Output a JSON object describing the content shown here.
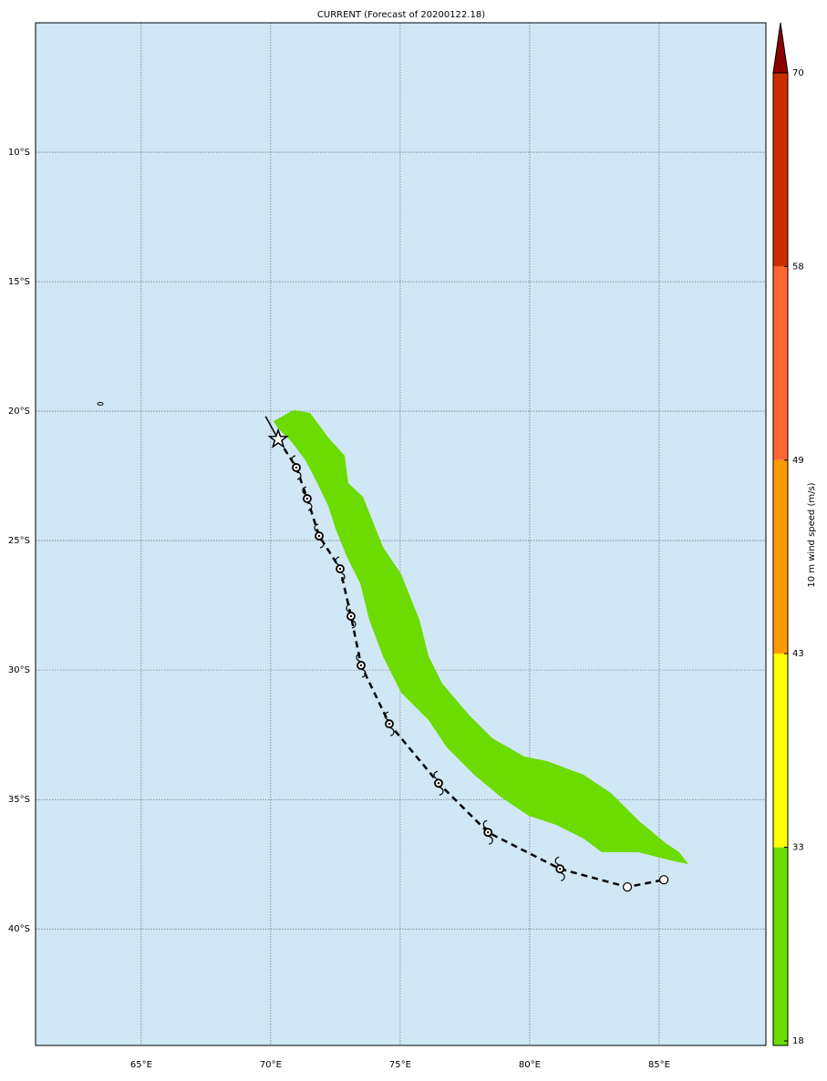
{
  "map": {
    "title": "CURRENT (Forecast of 20200122.18)",
    "xlim": [
      60.92,
      89.12
    ],
    "ylim": [
      -44.5,
      -5
    ],
    "xticks": [
      {
        "value": 65,
        "label": "65°E"
      },
      {
        "value": 70,
        "label": "70°E"
      },
      {
        "value": 75,
        "label": "75°E"
      },
      {
        "value": 80,
        "label": "80°E"
      },
      {
        "value": 85,
        "label": "85°E"
      }
    ],
    "yticks": [
      {
        "value": -10,
        "label": "10°S"
      },
      {
        "value": -15,
        "label": "15°S"
      },
      {
        "value": -20,
        "label": "20°S"
      },
      {
        "value": -25,
        "label": "25°S"
      },
      {
        "value": -30,
        "label": "30°S"
      },
      {
        "value": -35,
        "label": "35°S"
      },
      {
        "value": -40,
        "label": "40°S"
      }
    ],
    "grid": true,
    "ocean_color": "#d0e7f5",
    "track": {
      "lon": [
        69.8,
        70.29,
        70.99,
        71.41,
        71.87,
        72.68,
        73.1,
        73.49,
        74.58,
        76.48,
        78.39,
        81.17,
        83.77,
        85.18
      ],
      "lat": [
        -20.2,
        -21.09,
        -22.18,
        -23.38,
        -24.82,
        -26.09,
        -27.92,
        -29.82,
        -32.08,
        -34.37,
        -36.27,
        -37.68,
        -38.38,
        -38.1
      ],
      "symbol": [
        "none",
        "star",
        "cyclone",
        "cyclone",
        "cyclone",
        "cyclone",
        "cyclone",
        "cyclone",
        "cyclone",
        "cyclone",
        "cyclone",
        "cyclone",
        "circle",
        "circle"
      ]
    },
    "colorbar": {
      "label": "10 m wind speed (m/s)",
      "levels": [
        18,
        33,
        43,
        49,
        58,
        70
      ],
      "colors": [
        "#6cdb00",
        "#ffff00",
        "#ff9900",
        "#ff6633",
        "#cc2e00",
        "#8b0000"
      ],
      "extend": "max"
    }
  }
}
